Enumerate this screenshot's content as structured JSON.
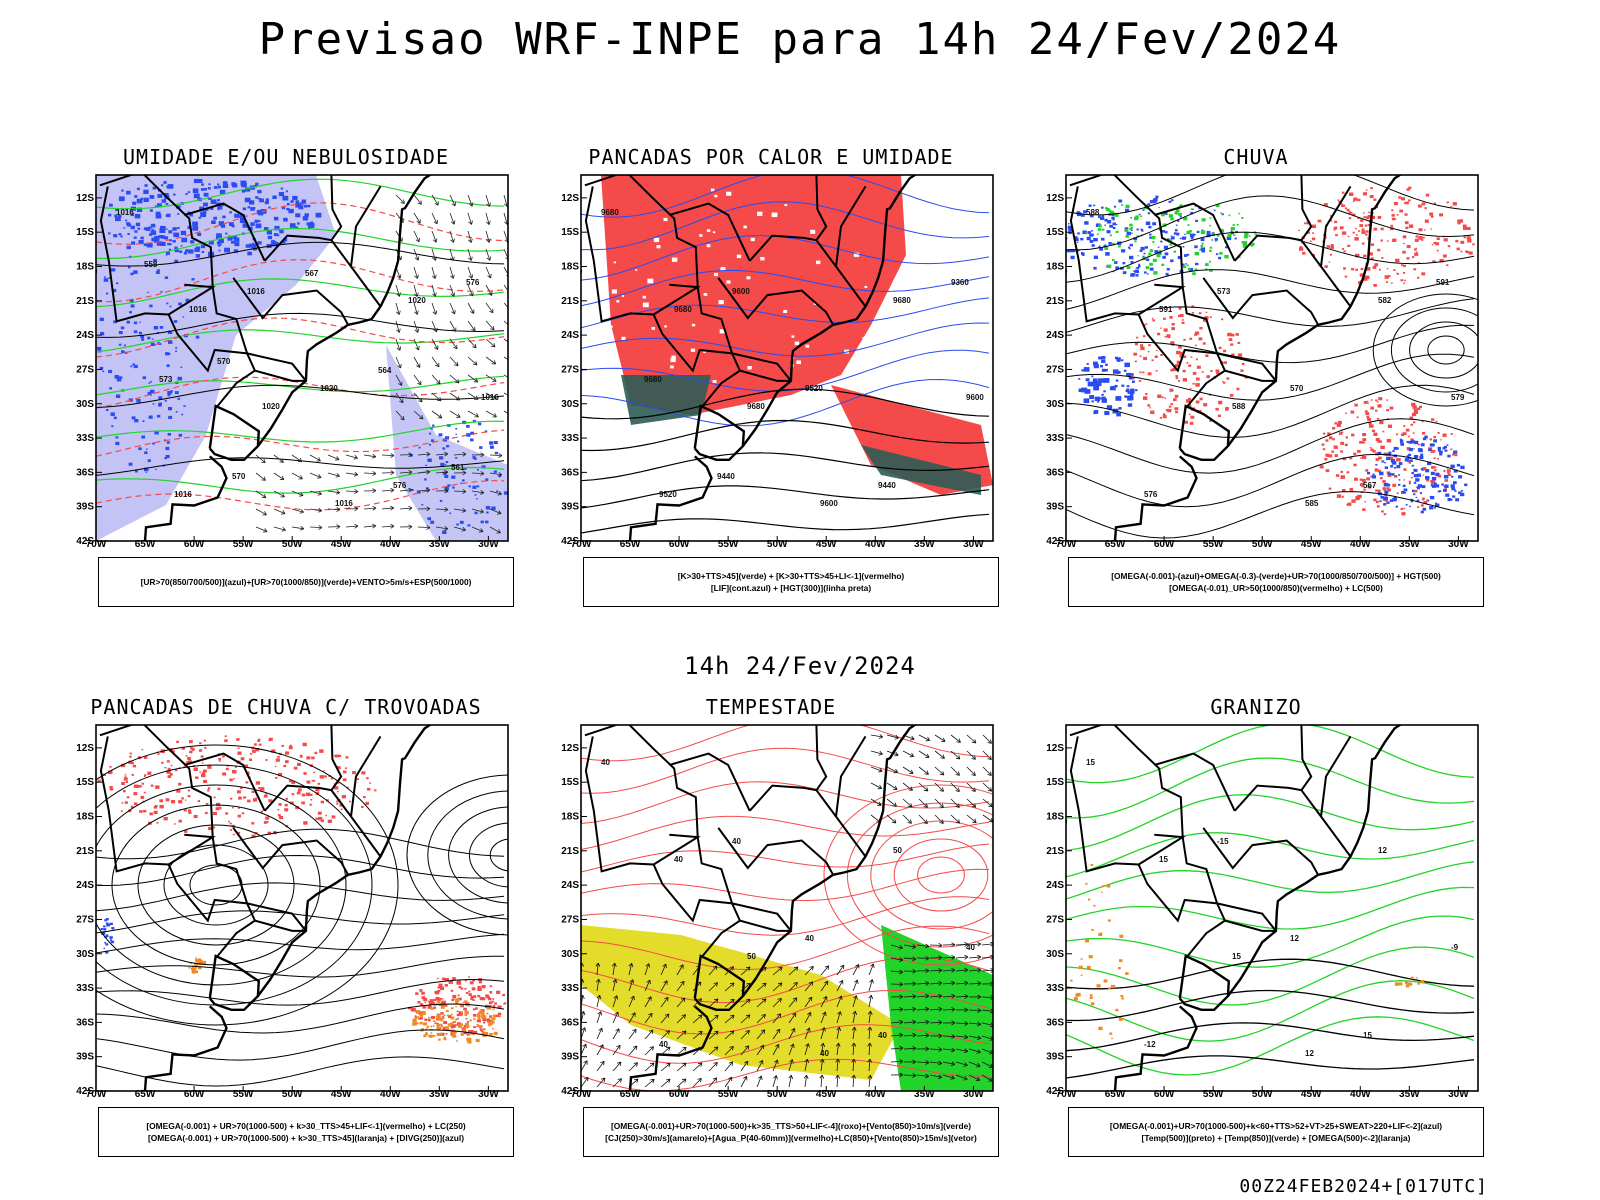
{
  "title": "Previsao WRF-INPE  para 14h 24/Fev/2024",
  "subtitle": "14h 24/Fev/2024",
  "footer": "00Z24FEB2024+[017UTC]",
  "axes": {
    "lat_labels": [
      "12S",
      "15S",
      "18S",
      "21S",
      "24S",
      "27S",
      "30S",
      "33S",
      "36S",
      "39S",
      "42S"
    ],
    "lon_labels": [
      "70W",
      "65W",
      "60W",
      "55W",
      "50W",
      "45W",
      "40W",
      "35W",
      "30W"
    ]
  },
  "colors": {
    "blue": "#2a4cf0",
    "lavender": "#b8b8f4",
    "green": "#22d42a",
    "red": "#f44a4a",
    "dark_teal": "#2d5c55",
    "yellow": "#e4dc2a",
    "orange": "#f08a22",
    "black": "#000000"
  },
  "panels": [
    {
      "id": "umidade",
      "title": "UMIDADE E/OU NEBULOSIDADE",
      "caption": [
        "[UR>70(850/700/500)](azul)+[UR>70(1000/850)](verde)+VENTO>5m/s+ESP(500/1000)"
      ],
      "contour_labels": [
        "1016",
        "1016",
        "1020",
        "1016",
        "1020",
        "1016",
        "1016",
        "1016",
        "1020",
        "576",
        "576",
        "573",
        "570",
        "567",
        "564",
        "561",
        "558",
        "570"
      ]
    },
    {
      "id": "pancadas-calor",
      "title": "PANCADAS POR CALOR E UMIDADE",
      "caption": [
        "[K>30+TTS>45](verde) + [K>30+TTS>45+LI<-1](vermelho)",
        "[LIF](cont.azul) + [HGT(300)](linha preta)"
      ],
      "contour_labels": [
        "9680",
        "9680",
        "9680",
        "9600",
        "9680",
        "9600",
        "9520",
        "9600",
        "9520",
        "9440",
        "9360",
        "9680",
        "9440"
      ]
    },
    {
      "id": "chuva",
      "title": "CHUVA",
      "caption": [
        "[OMEGA(-0.001)-(azul)+OMEGA(-0.3)-(verde)+UR>70(1000/850/700/500)] + HGT(500)",
        "[OMEGA(-0.01)_UR>50(1000/850)(vermelho) + LC(500)"
      ],
      "contour_labels": [
        "588",
        "591",
        "588",
        "585",
        "582",
        "579",
        "576",
        "573",
        "570",
        "567",
        "591"
      ]
    },
    {
      "id": "pancadas-trovoadas",
      "title": "PANCADAS DE CHUVA C/ TROVOADAS",
      "caption": [
        "[OMEGA(-0.001) + UR>70(1000-500) + k>30_TTS>45+LIF<-1](vermelho) + LC(250)",
        "[OMEGA(-0.001) + UR>70(1000-500) + k>30_TTS>45](laranja) + [DIVG(250)](azul)"
      ],
      "contour_labels": []
    },
    {
      "id": "tempestade",
      "title": "TEMPESTADE",
      "caption": [
        "[OMEGA(-0.001)+UR>70(1000-500)+k>35_TTS>50+LIF<-4](roxo)+[Vento(850)>10m/s](verde)",
        "[CJ(250)>30m/s](amarelo)+[Agua_P(40-60mm)](vermelho)+LC(850)+[Vento(850)>15m/s](vetor)"
      ],
      "contour_labels": [
        "40",
        "40",
        "50",
        "40",
        "50",
        "40",
        "40",
        "40",
        "40",
        "40"
      ]
    },
    {
      "id": "granizo",
      "title": "GRANIZO",
      "caption": [
        "[OMEGA(-0.001)+UR>70(1000-500)+k<60+TTS>52+VT>25+SWEAT>220+LIF<-2](azul)",
        "[Temp(500)](preto) + [Temp(850)](verde) + [OMEGA(500)<-2](laranja)"
      ],
      "contour_labels": [
        "15",
        "15",
        "15",
        "12",
        "12",
        "-9",
        "-12",
        "-15",
        "12",
        "15"
      ]
    }
  ]
}
